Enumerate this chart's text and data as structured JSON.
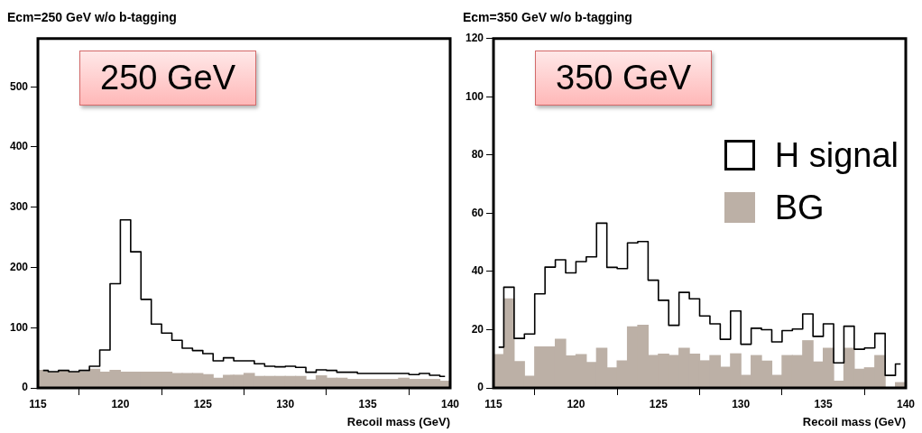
{
  "chart_data": [
    {
      "type": "histogram",
      "title": "Ecm=250 GeV w/o b-tagging",
      "xlabel": "Recoil mass (GeV)",
      "annotations": [
        "250 GeV"
      ],
      "bins": [
        115,
        115.625,
        116.25,
        116.875,
        117.5,
        118.125,
        118.75,
        119.375,
        120,
        120.625,
        121.25,
        121.875,
        122.5,
        123.125,
        123.75,
        124.375,
        125,
        125.625,
        126.25,
        126.875,
        127.5,
        128.125,
        128.75,
        129.375,
        130,
        130.625,
        131.25,
        131.875,
        132.5,
        133.125,
        133.75,
        134.375,
        135,
        135.625,
        136.25,
        136.875,
        137.5,
        138.125,
        138.75,
        139.375,
        140
      ],
      "xlim": [
        115,
        140
      ],
      "xticks": [
        115,
        120,
        125,
        130,
        135,
        140
      ],
      "ylim": [
        0,
        580
      ],
      "yticks": [
        0,
        100,
        200,
        300,
        400,
        500
      ],
      "series": [
        {
          "color": "#bcb0a6",
          "values": [
            29,
            26,
            29,
            26,
            27,
            31,
            26,
            29,
            26,
            26,
            26,
            26,
            26,
            24,
            24,
            24,
            22,
            16,
            21,
            21,
            24,
            19,
            19,
            19,
            19,
            19,
            13,
            20,
            16,
            16,
            14,
            14,
            14,
            14,
            14,
            16,
            14,
            14,
            14,
            11
          ]
        },
        {
          "type": "step",
          "color": "#000000",
          "x": [
            115.3125,
            115.9375,
            116.5625,
            117.1875,
            117.8125,
            118.4375,
            119.0625,
            119.6875,
            120.3125,
            120.9375,
            121.5625,
            122.1875,
            122.8125,
            123.4375,
            124.0625,
            124.6875,
            125.3125,
            125.9375,
            126.5625,
            127.1875,
            127.8125,
            128.4375,
            129.0625,
            129.6875,
            130.3125,
            130.9375,
            131.5625,
            132.1875,
            132.8125,
            133.4375,
            134.0625,
            134.6875,
            135.3125,
            135.9375,
            136.5625,
            137.1875,
            137.8125,
            138.4375,
            139.0625,
            139.6875
          ],
          "values": [
            29,
            27,
            29,
            27,
            29,
            36,
            63,
            173,
            279,
            226,
            147,
            106,
            91,
            79,
            66,
            62,
            57,
            45,
            50,
            45,
            45,
            40,
            36,
            35,
            36,
            34,
            26,
            30,
            29,
            26,
            26,
            24,
            24,
            24,
            24,
            24,
            22,
            24,
            21,
            19
          ]
        }
      ]
    },
    {
      "type": "histogram",
      "title": "Ecm=350 GeV w/o b-tagging",
      "xlabel": "Recoil mass (GeV)",
      "annotations": [
        "350 GeV"
      ],
      "legend": "top right",
      "bins": [
        115,
        115.625,
        116.25,
        116.875,
        117.5,
        118.125,
        118.75,
        119.375,
        120,
        120.625,
        121.25,
        121.875,
        122.5,
        123.125,
        123.75,
        124.375,
        125,
        125.625,
        126.25,
        126.875,
        127.5,
        128.125,
        128.75,
        129.375,
        130,
        130.625,
        131.25,
        131.875,
        132.5,
        133.125,
        133.75,
        134.375,
        135,
        135.625,
        136.25,
        136.875,
        137.5,
        138.125,
        138.75,
        139.375,
        140
      ],
      "xlim": [
        115,
        140
      ],
      "xticks": [
        115,
        120,
        125,
        130,
        135,
        140
      ],
      "ylim": [
        0,
        120
      ],
      "yticks": [
        0,
        20,
        40,
        60,
        80,
        100,
        120
      ],
      "series": [
        {
          "type": "step",
          "name": "H signal",
          "color": "#000000",
          "x": [
            115.3125,
            115.9375,
            116.5625,
            117.1875,
            117.8125,
            118.4375,
            119.0625,
            119.6875,
            120.3125,
            120.9375,
            121.5625,
            122.1875,
            122.8125,
            123.4375,
            124.0625,
            124.6875,
            125.3125,
            125.9375,
            126.5625,
            127.1875,
            127.8125,
            128.4375,
            129.0625,
            129.6875,
            130.3125,
            130.9375,
            131.5625,
            132.1875,
            132.8125,
            133.4375,
            134.0625,
            134.6875,
            135.3125,
            135.9375,
            136.5625,
            137.1875,
            137.8125,
            138.4375,
            139.0625,
            139.6875
          ],
          "values": [
            14,
            34.6,
            17,
            18.5,
            32.3,
            41.5,
            44,
            39.5,
            43.4,
            45,
            56.6,
            41.4,
            41,
            49.8,
            50.3,
            37,
            30.1,
            21.5,
            32.8,
            30.6,
            24.7,
            22,
            16.7,
            26.4,
            15,
            20.5,
            20,
            15.8,
            19.7,
            20.2,
            25.4,
            17.7,
            22,
            8.6,
            21.2,
            13.3,
            13.7,
            18.7,
            4.3,
            8.2
          ]
        },
        {
          "name": "BG",
          "color": "#bcb0a6",
          "values": [
            11.4,
            30.6,
            9,
            4,
            14.1,
            14.1,
            16.7,
            11,
            11.4,
            8.7,
            13.6,
            6.9,
            9.3,
            21,
            21.5,
            11.1,
            11.6,
            11.1,
            13.6,
            11.6,
            9.3,
            11.1,
            7.1,
            11.7,
            4.3,
            11.1,
            9.2,
            4.3,
            11.1,
            11.1,
            16.2,
            8.9,
            13.6,
            2.3,
            13.6,
            6.4,
            6.9,
            11.1,
            0,
            1.8
          ]
        }
      ]
    }
  ]
}
